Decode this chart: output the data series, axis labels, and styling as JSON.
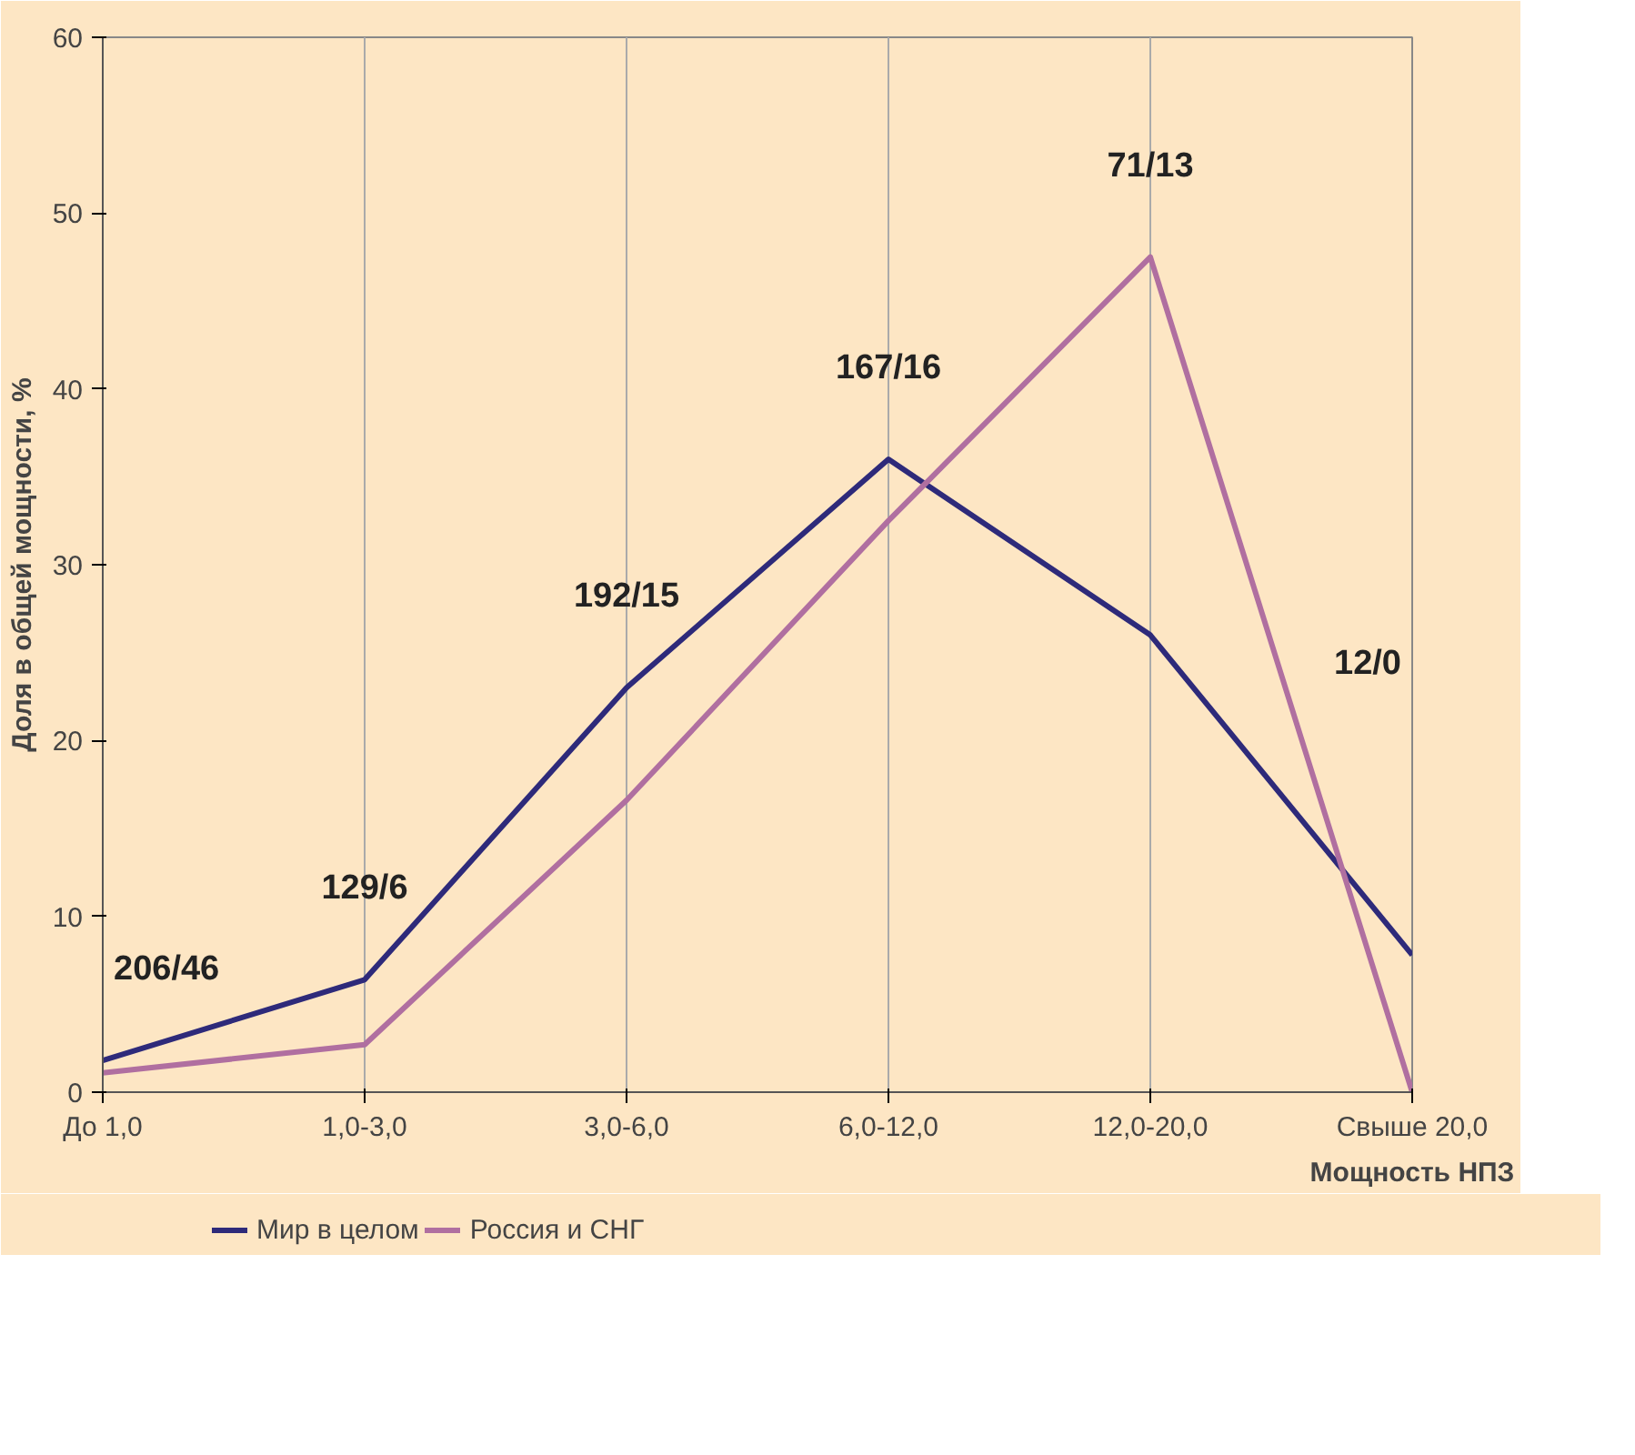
{
  "chart_data": {
    "type": "line",
    "xlabel": "Мощность НПЗ",
    "ylabel": "Доля в общей мощности, %",
    "categories": [
      "До 1,0",
      "1,0-3,0",
      "3,0-6,0",
      "6,0-12,0",
      "12,0-20,0",
      "Свыше 20,0"
    ],
    "series": [
      {
        "name": "Мир в целом",
        "color": "#2e2a7a",
        "values": [
          1.8,
          6.4,
          23,
          36,
          26,
          7.8
        ]
      },
      {
        "name": "Россия и СНГ",
        "color": "#b06fa0",
        "values": [
          1.1,
          2.7,
          16.6,
          32.5,
          47.5,
          0
        ]
      }
    ],
    "ylim": [
      0,
      60
    ],
    "yticks": [
      0,
      10,
      20,
      30,
      40,
      50,
      60
    ],
    "annotations": [
      "206/46",
      "129/6",
      "192/15",
      "167/16",
      "71/13",
      "12/0"
    ],
    "grid": "x",
    "legend": "bottom",
    "line_style": "solid",
    "marker": "none"
  }
}
